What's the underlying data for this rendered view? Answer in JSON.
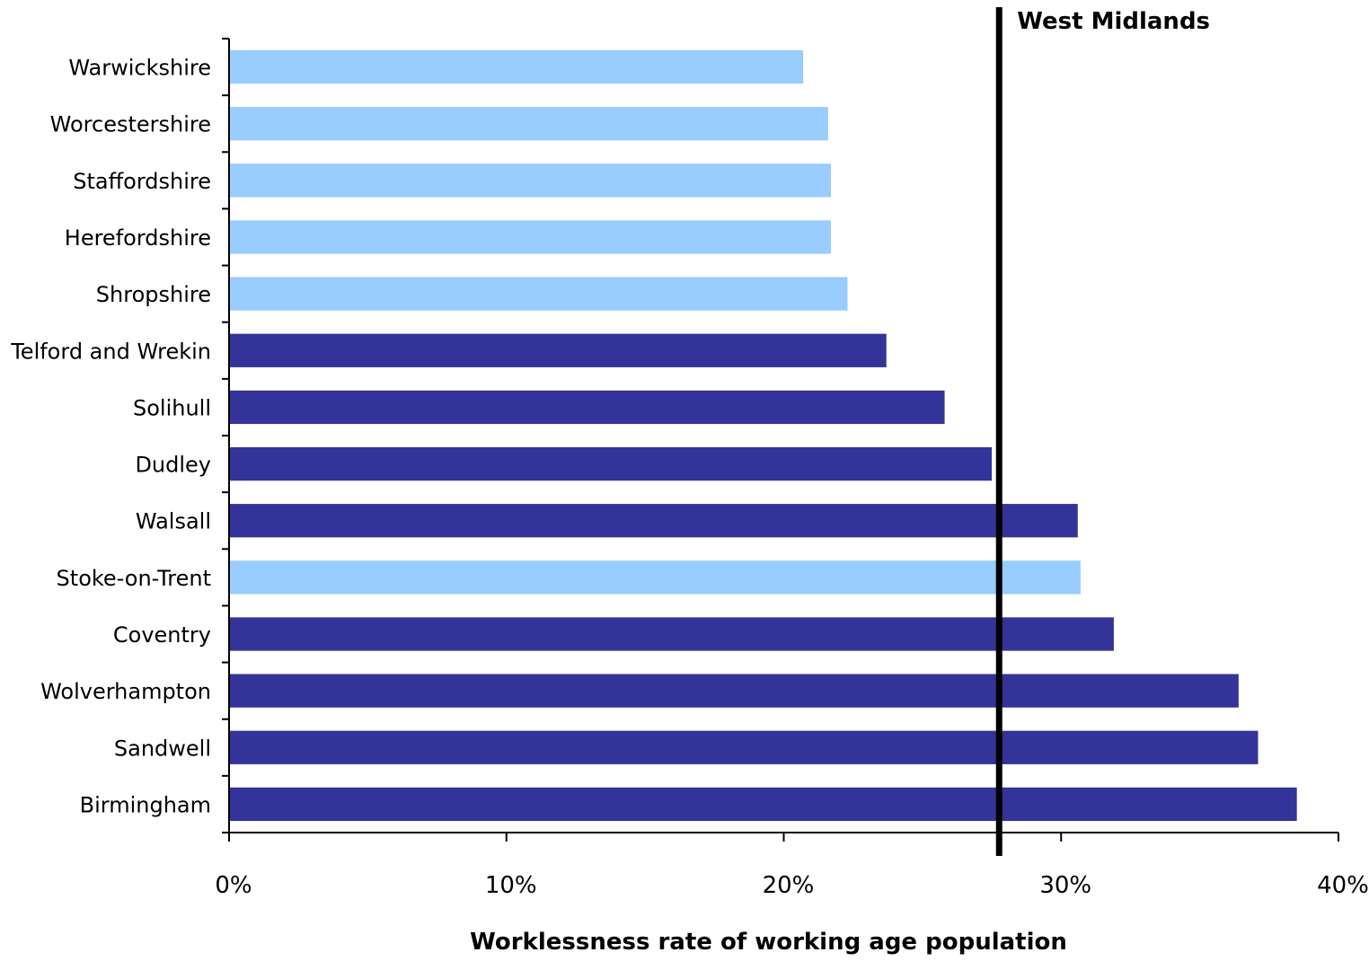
{
  "chart_data": {
    "type": "bar",
    "orientation": "horizontal",
    "categories": [
      "Warwickshire",
      "Worcestershire",
      "Staffordshire",
      "Herefordshire",
      "Shropshire",
      "Telford and Wrekin",
      "Solihull",
      "Dudley",
      "Walsall",
      "Stoke-on-Trent",
      "Coventry",
      "Wolverhampton",
      "Sandwell",
      "Birmingham"
    ],
    "values": [
      20.7,
      21.6,
      21.7,
      21.7,
      22.3,
      23.7,
      25.8,
      27.5,
      30.6,
      30.7,
      31.9,
      36.4,
      37.1,
      38.5
    ],
    "highlight": [
      false,
      false,
      false,
      false,
      false,
      true,
      true,
      true,
      true,
      false,
      true,
      true,
      true,
      true
    ],
    "colors": {
      "default": "#99ccff",
      "highlight": "#333399",
      "reference_line": "#000000"
    },
    "reference_line": {
      "value": 27.7,
      "label": "West Midlands"
    },
    "xlim": [
      0,
      40
    ],
    "xticks": [
      0,
      10,
      20,
      30,
      40
    ],
    "xtick_labels": [
      "0%",
      "10%",
      "20%",
      "30%",
      "40%"
    ],
    "xlabel": "Worklessness rate of working age population",
    "ylabel": "",
    "title": "",
    "grid": false,
    "legend": "none"
  }
}
